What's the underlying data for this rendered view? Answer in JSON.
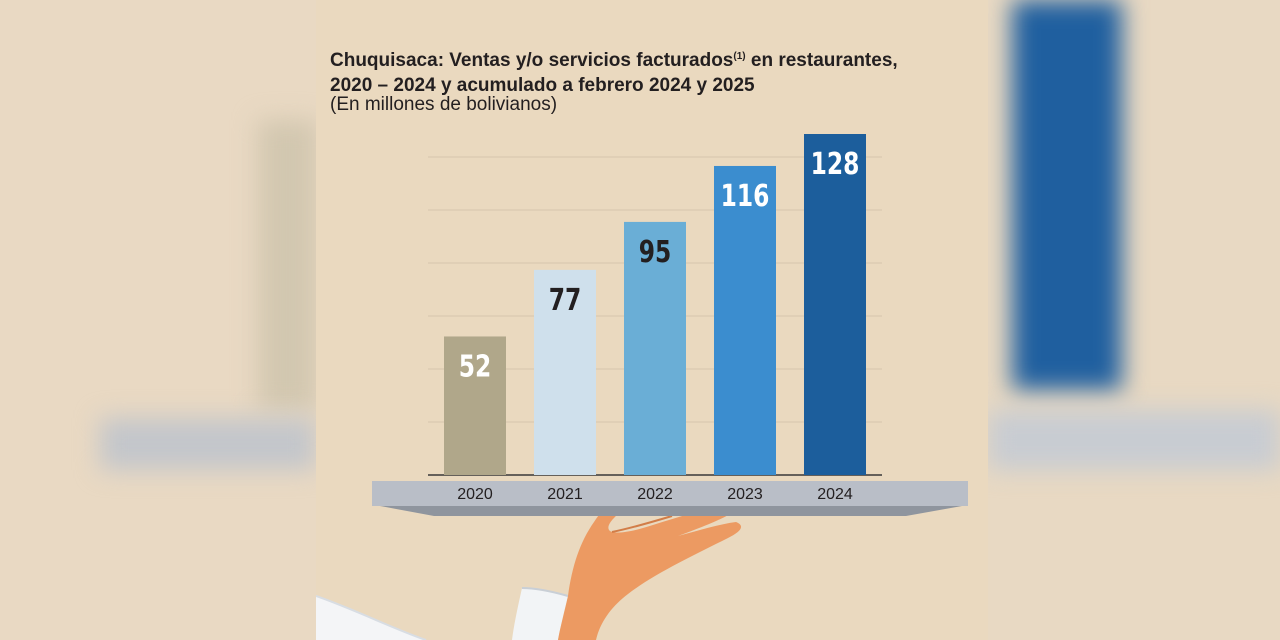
{
  "colors": {
    "background": "#ead9bf",
    "bar_2020": "#b0a78a",
    "bar_2021": "#cfe0ec",
    "bar_2022": "#6aaed6",
    "bar_2023": "#3b8dcf",
    "bar_2024": "#1c5e9c",
    "tray": "#b9bec7",
    "hand": "#ec9a62"
  },
  "header": {
    "title_line1_a": "Chuquisaca: Ventas y/o servicios facturados",
    "title_sup": "(1)",
    "title_line1_b": " en restaurantes,",
    "title_line2": "2020 – 2024 y acumulado a febrero 2024 y 2025",
    "subtitle": "(En millones de bolivianos)"
  },
  "chart_data": {
    "type": "bar",
    "title": "Chuquisaca: Ventas y/o servicios facturados(1) en restaurantes, 2020 – 2024 y acumulado a febrero 2024 y 2025",
    "subtitle": "(En millones de bolivianos)",
    "categories": [
      "2020",
      "2021",
      "2022",
      "2023",
      "2024"
    ],
    "values": [
      52,
      77,
      95,
      116,
      128
    ],
    "labels": [
      "52",
      "77",
      "95",
      "116",
      "128"
    ],
    "label_colors": [
      "#ffffff",
      "#231f20",
      "#231f20",
      "#ffffff",
      "#ffffff"
    ],
    "ylim": [
      0,
      130
    ],
    "grid": true,
    "legend": "none"
  }
}
